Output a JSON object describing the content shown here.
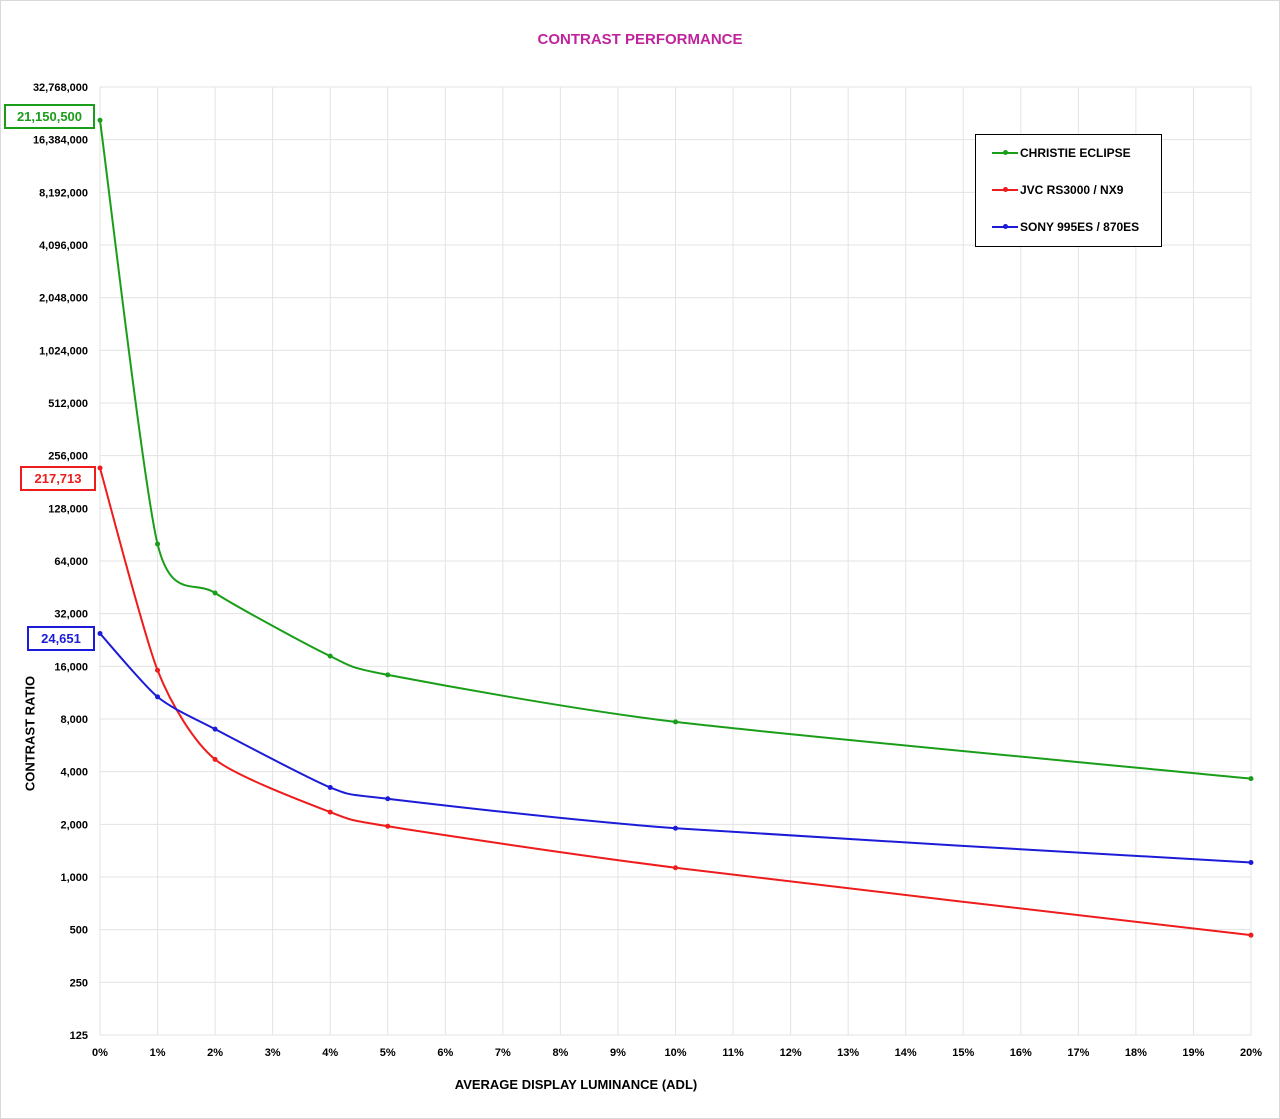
{
  "chart_data": {
    "type": "line",
    "title": "CONTRAST PERFORMANCE",
    "xlabel": "AVERAGE DISPLAY LUMINANCE (ADL)",
    "ylabel": "CONTRAST RATIO",
    "y_scale": "log2",
    "ylim": [
      125,
      32768000
    ],
    "xlim": [
      0,
      20
    ],
    "grid": true,
    "legend_position": "top-right",
    "x_ticks": [
      0,
      1,
      2,
      3,
      4,
      5,
      6,
      7,
      8,
      9,
      10,
      11,
      12,
      13,
      14,
      15,
      16,
      17,
      18,
      19,
      20
    ],
    "x_tick_labels": [
      "0%",
      "1%",
      "2%",
      "3%",
      "4%",
      "5%",
      "6%",
      "7%",
      "8%",
      "9%",
      "10%",
      "11%",
      "12%",
      "13%",
      "14%",
      "15%",
      "16%",
      "17%",
      "18%",
      "19%",
      "20%"
    ],
    "y_ticks": [
      125,
      250,
      500,
      1000,
      2000,
      4000,
      8000,
      16000,
      32000,
      64000,
      128000,
      256000,
      512000,
      1024000,
      2048000,
      4096000,
      8192000,
      16384000,
      32768000
    ],
    "y_tick_labels": [
      "125",
      "250",
      "500",
      "1,000",
      "2,000",
      "4,000",
      "8,000",
      "16,000",
      "32,000",
      "64,000",
      "128,000",
      "256,000",
      "512,000",
      "1,024,000",
      "2,048,000",
      "4,096,000",
      "8,192,000",
      "16,384,000",
      "32,768,000"
    ],
    "series": [
      {
        "name": "CHRISTIE ECLIPSE",
        "color": "#1a9e1a",
        "x": [
          0,
          1,
          2,
          4,
          5,
          10,
          20
        ],
        "y": [
          21150500,
          80000,
          42000,
          18300,
          14300,
          7700,
          3650
        ],
        "callout": "21,150,500"
      },
      {
        "name": "JVC RS3000 / NX9",
        "color": "#ee1c1c",
        "x": [
          0,
          1,
          2,
          4,
          5,
          10,
          20
        ],
        "y": [
          217713,
          15200,
          4700,
          2350,
          1950,
          1130,
          465
        ],
        "callout": "217,713"
      },
      {
        "name": "SONY 995ES / 870ES",
        "color": "#1c1cd8",
        "x": [
          0,
          1,
          2,
          4,
          5,
          10,
          20
        ],
        "y": [
          24651,
          10700,
          7000,
          3250,
          2800,
          1900,
          1210
        ],
        "callout": "24,651"
      }
    ]
  }
}
